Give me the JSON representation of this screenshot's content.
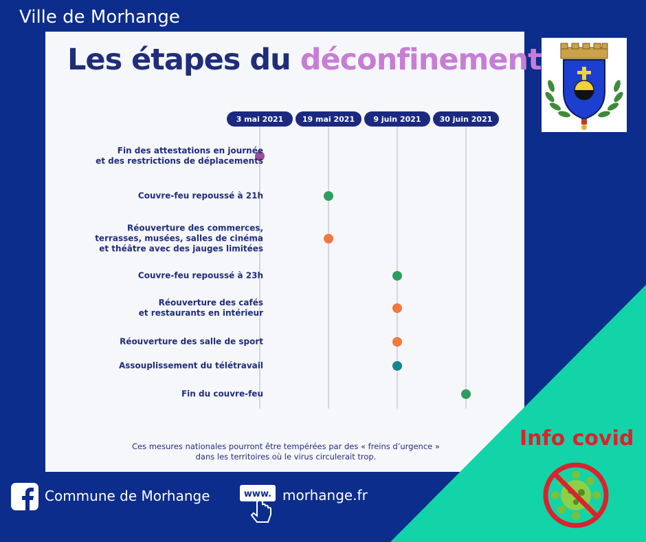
{
  "header": {
    "city_name": "Ville de Morhange"
  },
  "infographic": {
    "title_part1": "Les étapes du ",
    "title_part2": "déconfinement",
    "dates": [
      "3 mai 2021",
      "19 mai 2021",
      "9 juin 2021",
      "30 juin 2021"
    ],
    "steps": [
      {
        "lines": [
          "Fin des attestations en journée",
          "et des restrictions de déplacements"
        ],
        "date_index": 0,
        "color": "#9b4f98"
      },
      {
        "lines": [
          "Couvre-feu repoussé à 21h"
        ],
        "date_index": 1,
        "color": "#2e9e5f"
      },
      {
        "lines": [
          "Réouverture des commerces,",
          "terrasses, musées, salles de cinéma",
          "et théâtre avec des jauges limitées"
        ],
        "date_index": 1,
        "color": "#f07a3e"
      },
      {
        "lines": [
          "Couvre-feu repoussé à 23h"
        ],
        "date_index": 2,
        "color": "#2e9e5f"
      },
      {
        "lines": [
          "Réouverture des cafés",
          "et restaurants en intérieur"
        ],
        "date_index": 2,
        "color": "#f07a3e"
      },
      {
        "lines": [
          "Réouverture des salle de sport"
        ],
        "date_index": 2,
        "color": "#f07a3e"
      },
      {
        "lines": [
          "Assouplissement du télétravail"
        ],
        "date_index": 2,
        "color": "#14858f"
      },
      {
        "lines": [
          "Fin du couvre-feu"
        ],
        "date_index": 3,
        "color": "#2e9e5f"
      }
    ],
    "footnote_line1": "Ces mesures nationales pourront être tempérées par des « freins d’urgence »",
    "footnote_line2": "dans les territoires où le virus circulerait trop.",
    "colors": {
      "navy": "#1f2d7a",
      "accent": "#c77dd6",
      "pill": "#1b2a80"
    }
  },
  "info_badge": {
    "label": "Info covid",
    "icon": "no-virus-icon"
  },
  "footer": {
    "facebook_label": "Commune de Morhange",
    "facebook_icon": "facebook-icon",
    "web_icon_text": "www.",
    "website_label": "morhange.fr"
  },
  "colors": {
    "background": "#0c2d8c",
    "corner": "#12d4a8",
    "alert": "#d9232e"
  }
}
